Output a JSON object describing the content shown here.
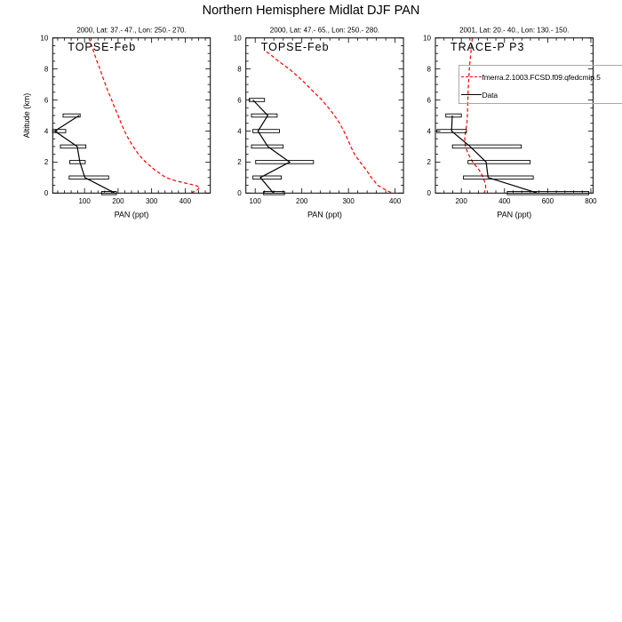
{
  "figure": {
    "title": "Northern Hemisphere Midlat DJF PAN",
    "ylabel": "Altitude (km)",
    "background": "#ffffff",
    "axis_color": "#000000"
  },
  "legend": {
    "position": "top-right, overlapping third panel, clipped at image right edge",
    "border_color": "#a8a8a8",
    "items": [
      {
        "label": "fmerra.2.1003.FCSD.f09.qfedcmip.5",
        "style": "dashed",
        "color": "#ff0000"
      },
      {
        "label": "Data",
        "style": "solid",
        "color": "#000000"
      }
    ]
  },
  "chart_data": [
    {
      "type": "line",
      "title": "2000, Lat: 37.- 47., Lon: 250.- 270.",
      "annotation": "TOPSE-Feb",
      "xlabel": "PAN (ppt)",
      "xlim": [
        5,
        475
      ],
      "ylim": [
        0,
        10
      ],
      "x_major_ticks": [
        100,
        200,
        300,
        400
      ],
      "x_minor_step": 20,
      "y_major_ticks": [
        0,
        2,
        4,
        6,
        8,
        10
      ],
      "y_minor_step": 0.5,
      "grid": false,
      "model": {
        "name": "fmerra.2.1003.FCSD.f09.qfedcmip.5",
        "color": "#ff0000",
        "linestyle": "dashed",
        "x": [
          113,
          121,
          129,
          137,
          146,
          154,
          162,
          171,
          181,
          190,
          200,
          209,
          219,
          231,
          245,
          261,
          282,
          309,
          342,
          370,
          400,
          430,
          444,
          436,
          420
        ],
        "y": [
          10,
          9.5,
          9,
          8.5,
          8,
          7.5,
          7,
          6.5,
          6,
          5.5,
          5,
          4.5,
          4,
          3.5,
          3,
          2.5,
          2,
          1.5,
          1,
          0.8,
          0.65,
          0.5,
          0.38,
          0.2,
          0.03
        ]
      },
      "data": {
        "name": "Data",
        "color": "#000000",
        "x": [
          190,
          101,
          86,
          78,
          11,
          84
        ],
        "y": [
          0,
          1,
          2,
          3,
          4,
          5
        ],
        "boxes": [
          {
            "y": 0,
            "xmin": 151,
            "xmax": 195
          },
          {
            "y": 1,
            "xmin": 54,
            "xmax": 172
          },
          {
            "y": 2,
            "xmin": 56,
            "xmax": 102
          },
          {
            "y": 3,
            "xmin": 28,
            "xmax": 104
          },
          {
            "y": 4,
            "xmin": 5,
            "xmax": 44
          },
          {
            "y": 5,
            "xmin": 36,
            "xmax": 87
          }
        ]
      }
    },
    {
      "type": "line",
      "title": "2000, Lat: 47.- 65., Lon: 250.- 280.",
      "annotation": "TOPSE-Feb",
      "xlabel": "PAN (ppt)",
      "xlim": [
        80,
        418
      ],
      "ylim": [
        0,
        10
      ],
      "x_major_ticks": [
        100,
        200,
        300,
        400
      ],
      "x_minor_step": 20,
      "y_major_ticks": [
        0,
        2,
        4,
        6,
        8,
        10
      ],
      "y_minor_step": 0.5,
      "grid": false,
      "model": {
        "name": "fmerra.2.1003.FCSD.f09.qfedcmip.5",
        "color": "#ff0000",
        "linestyle": "dashed",
        "x": [
          124,
          130,
          150,
          173,
          192,
          210,
          226,
          243,
          257,
          270,
          281,
          290,
          298,
          305,
          313,
          325,
          338,
          349,
          363,
          380,
          394
        ],
        "y": [
          9.1,
          9,
          8.5,
          8,
          7.5,
          7,
          6.5,
          6,
          5.5,
          5,
          4.5,
          4,
          3.5,
          3,
          2.5,
          2,
          1.5,
          1,
          0.5,
          0.2,
          0
        ]
      },
      "data": {
        "name": "Data",
        "color": "#000000",
        "x": [
          139,
          111,
          174,
          127,
          106,
          127,
          95
        ],
        "y": [
          0,
          1,
          2,
          3,
          4,
          5,
          6
        ],
        "boxes": [
          {
            "y": 0,
            "xmin": 118,
            "xmax": 163
          },
          {
            "y": 1,
            "xmin": 95,
            "xmax": 156
          },
          {
            "y": 2,
            "xmin": 101,
            "xmax": 225
          },
          {
            "y": 3,
            "xmin": 92,
            "xmax": 160
          },
          {
            "y": 4,
            "xmin": 95,
            "xmax": 152
          },
          {
            "y": 5,
            "xmin": 92,
            "xmax": 147
          },
          {
            "y": 6,
            "xmin": 87,
            "xmax": 120
          }
        ]
      }
    },
    {
      "type": "line",
      "title": "2001, Lat: 20.- 40., Lon: 130.- 150.",
      "annotation": "TRACE-P P3",
      "xlabel": "PAN (ppt)",
      "xlim": [
        80,
        810
      ],
      "ylim": [
        0,
        10
      ],
      "x_major_ticks": [
        200,
        400,
        600,
        800
      ],
      "x_minor_step": 40,
      "y_major_ticks": [
        0,
        2,
        4,
        6,
        8,
        10
      ],
      "y_minor_step": 0.5,
      "grid": false,
      "model": {
        "name": "fmerra.2.1003.FCSD.f09.qfedcmip.5",
        "color": "#ff0000",
        "linestyle": "dashed",
        "x": [
          251,
          247,
          244,
          240,
          237,
          235,
          233,
          231,
          230,
          229,
          228,
          226,
          220,
          216,
          219,
          233,
          253,
          282,
          302,
          313,
          312,
          306
        ],
        "y": [
          10,
          9.5,
          9,
          8.5,
          8,
          7.5,
          7,
          6.5,
          6,
          5.5,
          5,
          4.5,
          4,
          3.5,
          3,
          2.5,
          2,
          1.5,
          1,
          0.5,
          0.25,
          0
        ]
      },
      "data": {
        "name": "Data",
        "color": "#000000",
        "x": [
          553,
          324,
          315,
          241,
          155,
          158
        ],
        "y": [
          0,
          1,
          2,
          3,
          4,
          5
        ],
        "boxes": [
          {
            "y": 0,
            "xmin": 413,
            "xmax": 790
          },
          {
            "y": 1,
            "xmin": 210,
            "xmax": 533
          },
          {
            "y": 2,
            "xmin": 231,
            "xmax": 519
          },
          {
            "y": 3,
            "xmin": 159,
            "xmax": 478
          },
          {
            "y": 4,
            "xmin": 87,
            "xmax": 224
          },
          {
            "y": 5,
            "xmin": 128,
            "xmax": 200
          }
        ]
      }
    }
  ]
}
